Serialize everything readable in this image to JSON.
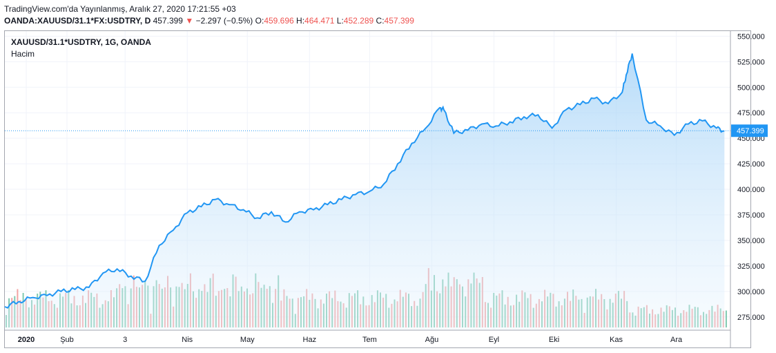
{
  "header": {
    "published": "TradingView.com'da Yayınlanmış, Aralık 27, 2020 17:21:55 +03",
    "symbol": "OANDA:XAUUSD/31.1*FX:USDTRY, D",
    "last": "457.399",
    "change_arrow": "▼",
    "change": "−2.297 (−0.5%)",
    "o_label": "O:",
    "o_value": "459.696",
    "h_label": "H:",
    "h_value": "464.471",
    "l_label": "L:",
    "l_value": "452.289",
    "c_label": "C:",
    "c_value": "457.399"
  },
  "chart_title": "XAUUSD/31.1*USDTRY, 1G, OANDA",
  "volume_label": "Hacim",
  "colors": {
    "line": "#2196f3",
    "area_top": "#b7dcfa",
    "up_volume": "#7fc9b0",
    "down_volume": "#f2a3a3",
    "price_tag": "#2196f3",
    "negative": "#ef5350"
  },
  "chart_data": {
    "type": "area",
    "x": [
      "2020-01-01",
      "2020-01-08",
      "2020-01-15",
      "2020-01-22",
      "2020-01-29",
      "2020-02-05",
      "2020-02-12",
      "2020-02-19",
      "2020-02-26",
      "2020-03-04",
      "2020-03-11",
      "2020-03-18",
      "2020-03-25",
      "2020-04-01",
      "2020-04-08",
      "2020-04-15",
      "2020-04-22",
      "2020-04-29",
      "2020-05-06",
      "2020-05-13",
      "2020-05-20",
      "2020-05-27",
      "2020-06-03",
      "2020-06-10",
      "2020-06-17",
      "2020-06-24",
      "2020-07-01",
      "2020-07-08",
      "2020-07-15",
      "2020-07-22",
      "2020-07-29",
      "2020-08-05",
      "2020-08-07",
      "2020-08-12",
      "2020-08-19",
      "2020-08-26",
      "2020-09-02",
      "2020-09-09",
      "2020-09-16",
      "2020-09-23",
      "2020-09-30",
      "2020-10-07",
      "2020-10-14",
      "2020-10-21",
      "2020-10-28",
      "2020-11-04",
      "2020-11-06",
      "2020-11-09",
      "2020-11-16",
      "2020-11-23",
      "2020-11-30",
      "2020-12-07",
      "2020-12-14",
      "2020-12-21",
      "2020-12-25"
    ],
    "values": [
      285,
      290,
      294,
      296,
      300,
      302,
      304,
      318,
      322,
      315,
      310,
      345,
      360,
      377,
      383,
      390,
      385,
      380,
      372,
      378,
      368,
      378,
      380,
      385,
      390,
      395,
      398,
      405,
      425,
      445,
      460,
      480,
      478,
      455,
      458,
      464,
      462,
      466,
      471,
      473,
      460,
      478,
      483,
      489,
      484,
      495,
      512,
      533,
      468,
      462,
      453,
      464,
      467,
      460,
      457
    ],
    "volume_scale": "relative",
    "title": "XAUUSD/31.1*USDTRY, 1G, OANDA",
    "ylim": [
      262,
      555
    ],
    "y_ticks": [
      "550.000",
      "525.000",
      "500.000",
      "475.000",
      "450.000",
      "425.000",
      "400.000",
      "375.000",
      "350.000",
      "325.000",
      "300.000",
      "275.000"
    ],
    "x_ticks": [
      "2020",
      "Şub",
      "3",
      "Nis",
      "May",
      "Haz",
      "Tem",
      "Ağu",
      "Eyl",
      "Eki",
      "Kas",
      "Ara"
    ],
    "last_price_tag": "457.399",
    "grid": true,
    "legend": "none"
  }
}
